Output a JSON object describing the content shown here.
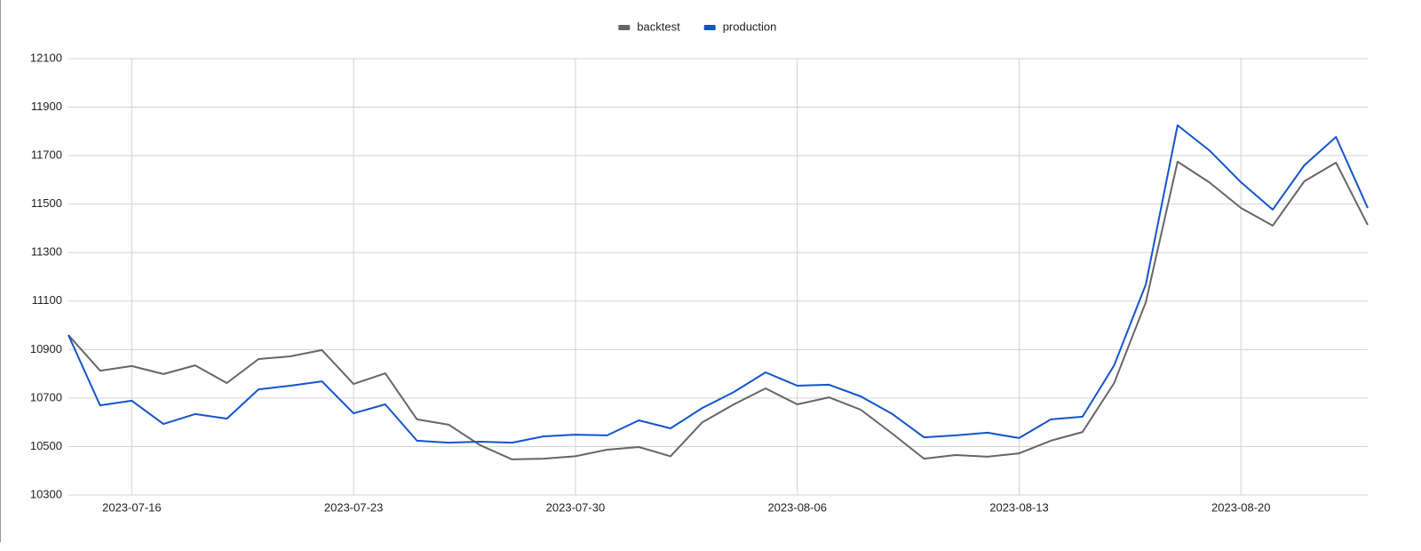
{
  "chart_data": {
    "type": "line",
    "x": [
      "2023-07-14",
      "2023-07-15",
      "2023-07-16",
      "2023-07-17",
      "2023-07-18",
      "2023-07-19",
      "2023-07-20",
      "2023-07-21",
      "2023-07-22",
      "2023-07-23",
      "2023-07-24",
      "2023-07-25",
      "2023-07-26",
      "2023-07-27",
      "2023-07-28",
      "2023-07-29",
      "2023-07-30",
      "2023-07-31",
      "2023-08-01",
      "2023-08-02",
      "2023-08-03",
      "2023-08-04",
      "2023-08-05",
      "2023-08-06",
      "2023-08-07",
      "2023-08-08",
      "2023-08-09",
      "2023-08-10",
      "2023-08-11",
      "2023-08-12",
      "2023-08-13",
      "2023-08-14",
      "2023-08-15",
      "2023-08-16",
      "2023-08-17",
      "2023-08-18",
      "2023-08-19",
      "2023-08-20",
      "2023-08-21",
      "2023-08-22",
      "2023-08-23",
      "2023-08-24"
    ],
    "series": [
      {
        "name": "backtest",
        "color": "#666666",
        "values": [
          10960,
          10813,
          10832,
          10799,
          10835,
          10762,
          10861,
          10872,
          10898,
          10758,
          10802,
          10612,
          10590,
          10505,
          10447,
          10450,
          10460,
          10487,
          10498,
          10460,
          10600,
          10674,
          10740,
          10674,
          10703,
          10652,
          10553,
          10450,
          10465,
          10458,
          10472,
          10524,
          10560,
          10762,
          11096,
          11675,
          11590,
          11484,
          11411,
          11594,
          11671,
          11414
        ]
      },
      {
        "name": "production",
        "color": "#1155cc",
        "values": [
          10960,
          10670,
          10689,
          10593,
          10634,
          10615,
          10736,
          10751,
          10769,
          10637,
          10674,
          10524,
          10516,
          10520,
          10516,
          10542,
          10549,
          10546,
          10608,
          10575,
          10659,
          10725,
          10806,
          10751,
          10755,
          10707,
          10634,
          10538,
          10546,
          10557,
          10535,
          10612,
          10623,
          10835,
          11169,
          11825,
          11722,
          11590,
          11477,
          11660,
          11777,
          11484
        ]
      }
    ],
    "xlim": [
      "2023-07-14",
      "2023-08-24"
    ],
    "xticks": [
      "2023-07-16",
      "2023-07-23",
      "2023-07-30",
      "2023-08-06",
      "2023-08-13",
      "2023-08-20"
    ],
    "ylim": [
      10300,
      12100
    ],
    "yticks": [
      10300,
      10500,
      10700,
      10900,
      11100,
      11300,
      11500,
      11700,
      11900,
      12100
    ],
    "grid": true,
    "legend": "top"
  }
}
